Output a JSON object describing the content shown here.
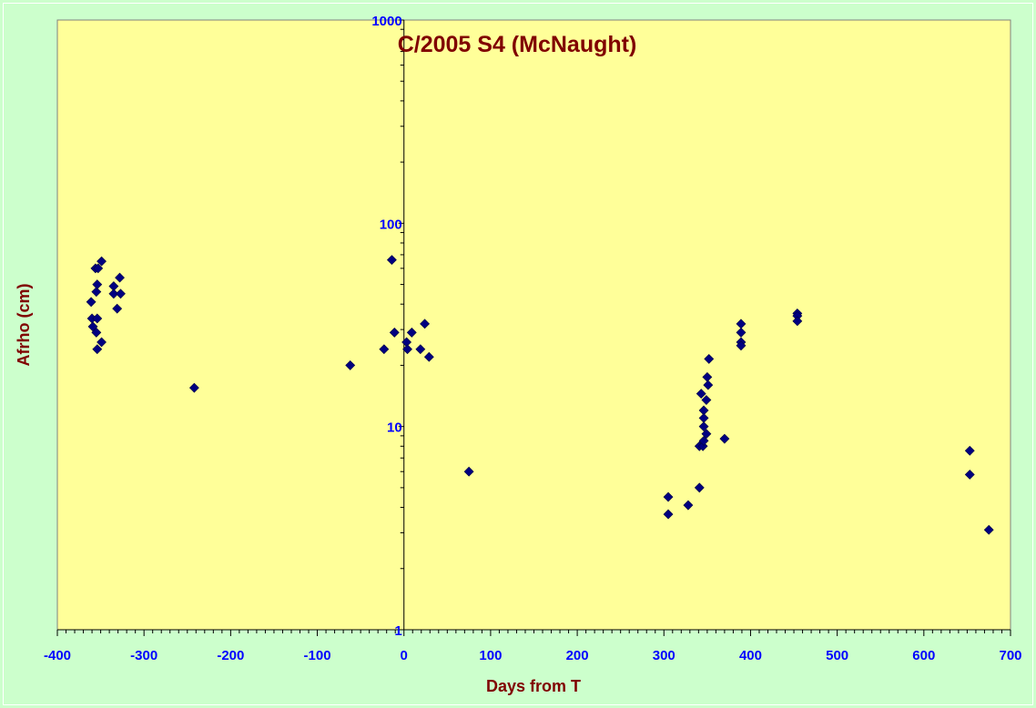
{
  "colors": {
    "page_background": "#ccffcc",
    "plot_background": "#ffff99",
    "title": "#800000",
    "axis_label": "#800000",
    "tick_label": "#0000ff",
    "marker_fill": "#000080",
    "axis_line": "#000000"
  },
  "chart_data": {
    "type": "scatter",
    "title": "C/2005 S4 (McNaught)",
    "xlabel": "Days from T",
    "ylabel": "Afrho (cm)",
    "xlim": [
      -400,
      700
    ],
    "ylim": [
      1,
      1000
    ],
    "yscale": "log",
    "x_ticks": [
      -400,
      -300,
      -200,
      -100,
      0,
      100,
      200,
      300,
      400,
      500,
      600,
      700
    ],
    "x_tick_labels": [
      "-400",
      "-300",
      "-200",
      "-100",
      "0",
      "100",
      "200",
      "300",
      "400",
      "500",
      "600",
      "700"
    ],
    "y_ticks": [
      1,
      10,
      100,
      1000
    ],
    "y_tick_labels": [
      "1",
      "10",
      "100",
      "1000"
    ],
    "grid": false,
    "legend": "none",
    "marker": "diamond",
    "series": [
      {
        "points": [
          {
            "x": -361,
            "y": 41
          },
          {
            "x": -360,
            "y": 34
          },
          {
            "x": -359,
            "y": 31
          },
          {
            "x": -356,
            "y": 60
          },
          {
            "x": -355,
            "y": 46
          },
          {
            "x": -355,
            "y": 29
          },
          {
            "x": -354,
            "y": 50
          },
          {
            "x": -354,
            "y": 34
          },
          {
            "x": -353,
            "y": 60
          },
          {
            "x": -354,
            "y": 24
          },
          {
            "x": -349,
            "y": 65
          },
          {
            "x": -349,
            "y": 26
          },
          {
            "x": -335,
            "y": 49
          },
          {
            "x": -335,
            "y": 45
          },
          {
            "x": -331,
            "y": 38
          },
          {
            "x": -328,
            "y": 54
          },
          {
            "x": -327,
            "y": 45
          },
          {
            "x": -242,
            "y": 15.5
          },
          {
            "x": -62,
            "y": 20
          },
          {
            "x": -23,
            "y": 24
          },
          {
            "x": -14,
            "y": 66
          },
          {
            "x": -11,
            "y": 29
          },
          {
            "x": 3,
            "y": 26
          },
          {
            "x": 4,
            "y": 24
          },
          {
            "x": 9,
            "y": 29
          },
          {
            "x": 19,
            "y": 24
          },
          {
            "x": 24,
            "y": 32
          },
          {
            "x": 29,
            "y": 22
          },
          {
            "x": 75,
            "y": 6
          },
          {
            "x": 305,
            "y": 4.5
          },
          {
            "x": 305,
            "y": 3.7
          },
          {
            "x": 328,
            "y": 4.1
          },
          {
            "x": 341,
            "y": 5
          },
          {
            "x": 341,
            "y": 8
          },
          {
            "x": 343,
            "y": 14.5
          },
          {
            "x": 345,
            "y": 8
          },
          {
            "x": 346,
            "y": 12
          },
          {
            "x": 346,
            "y": 11
          },
          {
            "x": 346,
            "y": 10
          },
          {
            "x": 346,
            "y": 8.5
          },
          {
            "x": 349,
            "y": 13.5
          },
          {
            "x": 349,
            "y": 9.2
          },
          {
            "x": 350,
            "y": 17.5
          },
          {
            "x": 351,
            "y": 16
          },
          {
            "x": 352,
            "y": 21.5
          },
          {
            "x": 370,
            "y": 8.7
          },
          {
            "x": 389,
            "y": 32
          },
          {
            "x": 389,
            "y": 29
          },
          {
            "x": 389,
            "y": 26
          },
          {
            "x": 389,
            "y": 25
          },
          {
            "x": 454,
            "y": 36
          },
          {
            "x": 454,
            "y": 35
          },
          {
            "x": 454,
            "y": 33
          },
          {
            "x": 653,
            "y": 7.6
          },
          {
            "x": 653,
            "y": 5.8
          },
          {
            "x": 675,
            "y": 3.1
          }
        ]
      }
    ]
  }
}
